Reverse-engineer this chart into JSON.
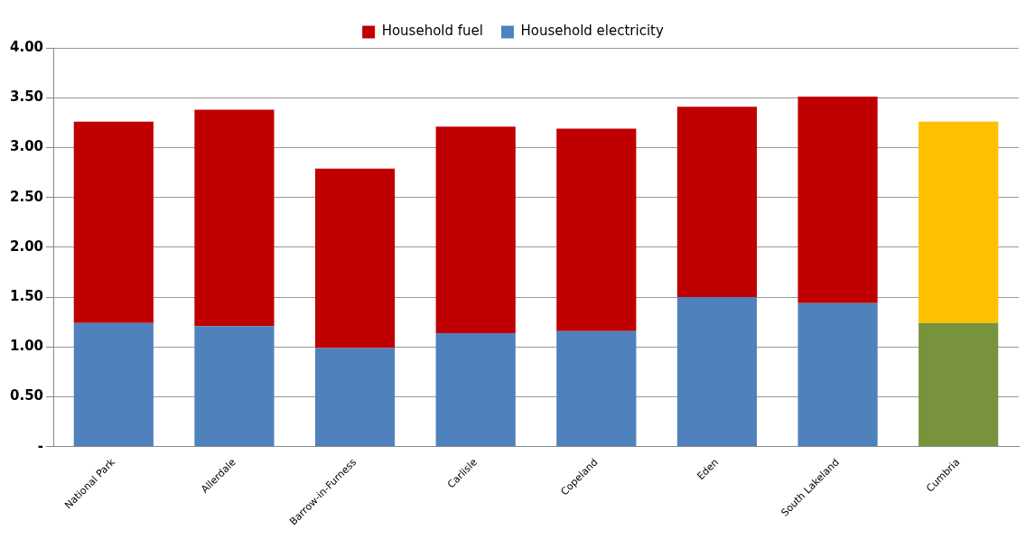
{
  "chart_data": {
    "type": "bar",
    "stacked": true,
    "categories": [
      "National Park",
      "Allerdale",
      "Barrow-in-Furness",
      "Carlisle",
      "Copeland",
      "Eden",
      "South Lakeland",
      "Cumbria"
    ],
    "series": [
      {
        "name": "Household electricity",
        "color": "#4f81bd",
        "colors": [
          "#4f81bd",
          "#4f81bd",
          "#4f81bd",
          "#4f81bd",
          "#4f81bd",
          "#4f81bd",
          "#4f81bd",
          "#77933c"
        ],
        "values": [
          1.24,
          1.21,
          0.99,
          1.14,
          1.16,
          1.5,
          1.44,
          1.24
        ]
      },
      {
        "name": "Household fuel",
        "color": "#c00000",
        "colors": [
          "#c00000",
          "#c00000",
          "#c00000",
          "#c00000",
          "#c00000",
          "#c00000",
          "#c00000",
          "#ffc000"
        ],
        "values": [
          2.02,
          2.17,
          1.8,
          2.07,
          2.03,
          1.91,
          2.07,
          2.02
        ]
      }
    ],
    "ylim": [
      0,
      4
    ],
    "yticks": [
      {
        "value": 0,
        "label": "-"
      },
      {
        "value": 0.5,
        "label": "0.50"
      },
      {
        "value": 1,
        "label": "1.00"
      },
      {
        "value": 1.5,
        "label": "1.50"
      },
      {
        "value": 2,
        "label": "2.00"
      },
      {
        "value": 2.5,
        "label": "2.50"
      },
      {
        "value": 3,
        "label": "3.00"
      },
      {
        "value": 3.5,
        "label": "3.50"
      },
      {
        "value": 4,
        "label": "4.00"
      }
    ],
    "grid": "y",
    "legend": "top"
  }
}
